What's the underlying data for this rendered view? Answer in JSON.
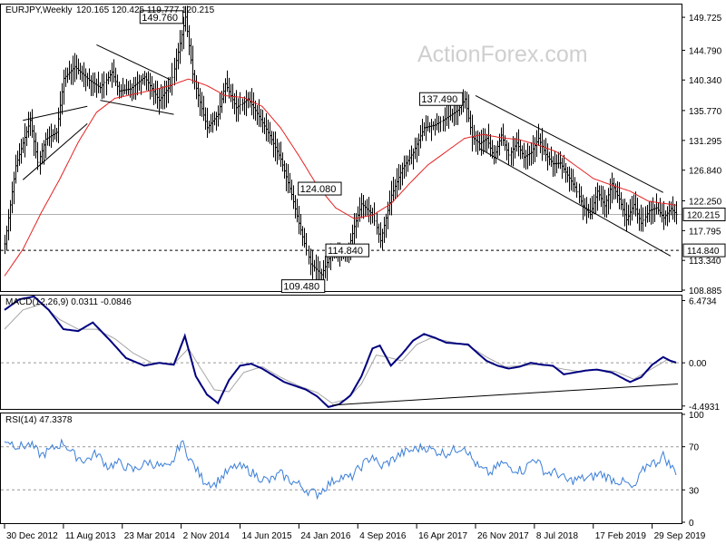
{
  "header": {
    "symbol": "EURJPY,Weekly",
    "ohlc": "120.165 120.425 119.777 120.215"
  },
  "watermark": "ActionForex.com",
  "colors": {
    "price": "#000000",
    "ma": "#e52121",
    "macd": "#00007f",
    "signal": "#a6a6a6",
    "rsi": "#3a7ed8",
    "hline": "#000000"
  },
  "chart_data": [
    {
      "type": "line",
      "name": "price-panel",
      "ylim": [
        108.885,
        151.5
      ],
      "ytick_labels": [
        "149.725",
        "144.790",
        "140.340",
        "135.770",
        "131.295",
        "126.840",
        "122.250",
        "117.795",
        "113.340",
        "108.885"
      ],
      "ytick_values": [
        149.725,
        144.79,
        140.34,
        135.77,
        131.295,
        126.84,
        122.25,
        117.795,
        113.34,
        108.885
      ],
      "xtick_labels": [
        "30 Dec 2012",
        "11 Aug 2013",
        "23 Mar 2014",
        "2 Nov 2014",
        "14 Jun 2015",
        "24 Jan 2016",
        "4 Sep 2016",
        "16 Apr 2017",
        "26 Nov 2017",
        "8 Jul 2018",
        "17 Feb 2019",
        "29 Sep 2019"
      ],
      "xtick_index": [
        0,
        32,
        64,
        96,
        128,
        160,
        192,
        224,
        256,
        288,
        320,
        352
      ],
      "weeks": 366,
      "price_anchors": [
        [
          0,
          115.8
        ],
        [
          6,
          127.5
        ],
        [
          14,
          134.3
        ],
        [
          18,
          128
        ],
        [
          22,
          131.5
        ],
        [
          28,
          132.5
        ],
        [
          32,
          140.6
        ],
        [
          38,
          142.3
        ],
        [
          46,
          140.3
        ],
        [
          52,
          139.2
        ],
        [
          58,
          141.5
        ],
        [
          62,
          138.7
        ],
        [
          68,
          139
        ],
        [
          76,
          140.8
        ],
        [
          84,
          137.3
        ],
        [
          90,
          139.5
        ],
        [
          94,
          144.5
        ],
        [
          98,
          149.76
        ],
        [
          102,
          141.2
        ],
        [
          106,
          137
        ],
        [
          110,
          133.2
        ],
        [
          116,
          135.2
        ],
        [
          120,
          139.8
        ],
        [
          126,
          136.2
        ],
        [
          132,
          137.5
        ],
        [
          138,
          134.9
        ],
        [
          144,
          132
        ],
        [
          150,
          128.5
        ],
        [
          156,
          123.2
        ],
        [
          160,
          118.9
        ],
        [
          166,
          112.8
        ],
        [
          172,
          111.2
        ],
        [
          178,
          114.8
        ],
        [
          186,
          114.2
        ],
        [
          190,
          118.4
        ],
        [
          194,
          121.8
        ],
        [
          200,
          120.2
        ],
        [
          204,
          116.3
        ],
        [
          210,
          123.1
        ],
        [
          216,
          127.1
        ],
        [
          222,
          129.5
        ],
        [
          228,
          133.2
        ],
        [
          234,
          133.6
        ],
        [
          240,
          134.7
        ],
        [
          246,
          135.8
        ],
        [
          250,
          137.49
        ],
        [
          254,
          131.8
        ],
        [
          258,
          130.8
        ],
        [
          262,
          131.6
        ],
        [
          266,
          128.7
        ],
        [
          270,
          132.1
        ],
        [
          274,
          129.1
        ],
        [
          278,
          130.9
        ],
        [
          282,
          128.8
        ],
        [
          286,
          129.5
        ],
        [
          290,
          131.6
        ],
        [
          294,
          129.2
        ],
        [
          298,
          127.8
        ],
        [
          302,
          127.9
        ],
        [
          306,
          126.1
        ],
        [
          310,
          124.3
        ],
        [
          314,
          121.5
        ],
        [
          318,
          120.2
        ],
        [
          322,
          123.7
        ],
        [
          326,
          121.5
        ],
        [
          330,
          124.8
        ],
        [
          334,
          122.5
        ],
        [
          338,
          119.4
        ],
        [
          342,
          121.7
        ],
        [
          346,
          118.9
        ],
        [
          350,
          120.8
        ],
        [
          354,
          121.2
        ],
        [
          358,
          119.7
        ],
        [
          362,
          121.1
        ],
        [
          365,
          120.215
        ]
      ],
      "ma_anchors": [
        [
          0,
          111
        ],
        [
          10,
          115
        ],
        [
          20,
          120.5
        ],
        [
          30,
          125.5
        ],
        [
          40,
          131
        ],
        [
          50,
          135.5
        ],
        [
          60,
          137.6
        ],
        [
          70,
          138.2
        ],
        [
          80,
          138.8
        ],
        [
          90,
          139.5
        ],
        [
          100,
          140.5
        ],
        [
          110,
          139.5
        ],
        [
          120,
          138
        ],
        [
          130,
          137.7
        ],
        [
          140,
          136.4
        ],
        [
          150,
          133.2
        ],
        [
          160,
          129
        ],
        [
          170,
          124.5
        ],
        [
          180,
          121.2
        ],
        [
          190,
          119.6
        ],
        [
          200,
          120.1
        ],
        [
          210,
          121.8
        ],
        [
          220,
          124.8
        ],
        [
          230,
          127.6
        ],
        [
          240,
          129.6
        ],
        [
          250,
          131.6
        ],
        [
          260,
          132.2
        ],
        [
          270,
          131.7
        ],
        [
          280,
          131.4
        ],
        [
          290,
          130.6
        ],
        [
          300,
          129.6
        ],
        [
          310,
          127.6
        ],
        [
          320,
          125.6
        ],
        [
          330,
          124.6
        ],
        [
          340,
          123.7
        ],
        [
          350,
          122.2
        ],
        [
          360,
          121.8
        ],
        [
          365,
          121.6
        ]
      ],
      "annotations": [
        {
          "text": "149.760",
          "week": 98,
          "value": 149.76
        },
        {
          "text": "137.490",
          "week": 250,
          "value": 137.49
        },
        {
          "text": "124.080",
          "week": 184,
          "value": 124.08
        },
        {
          "text": "114.840",
          "week": 199,
          "value": 114.84
        },
        {
          "text": "109.480",
          "week": 175,
          "value": 109.48
        }
      ],
      "hline_value": 114.84,
      "current_value": 120.215,
      "current_label": "120.215",
      "hline_label": "114.840",
      "trendlines": [
        [
          [
            10,
            125.4
          ],
          [
            45,
            133.8
          ]
        ],
        [
          [
            10,
            134.3
          ],
          [
            45,
            136.4
          ]
        ],
        [
          [
            50,
            145.6
          ],
          [
            90,
            140.4
          ]
        ],
        [
          [
            52,
            137.3
          ],
          [
            92,
            135.2
          ]
        ],
        [
          [
            256,
            138
          ],
          [
            358,
            123.5
          ]
        ],
        [
          [
            258,
            130.1
          ],
          [
            362,
            114
          ]
        ]
      ]
    },
    {
      "type": "line",
      "name": "macd-panel",
      "title": "MACD(12,26,9) 0.0311 -0.0846",
      "ylim": [
        -4.7,
        6.9
      ],
      "ytick_labels": [
        "6.4734",
        "0.00",
        "-4.4931"
      ],
      "ytick_values": [
        6.4734,
        0,
        -4.4931
      ],
      "current_label": "0.00",
      "macd_anchors": [
        [
          0,
          5.5
        ],
        [
          8,
          6.6
        ],
        [
          16,
          6.9
        ],
        [
          24,
          5.5
        ],
        [
          32,
          3.5
        ],
        [
          40,
          3.3
        ],
        [
          48,
          4.2
        ],
        [
          58,
          2.2
        ],
        [
          66,
          0.5
        ],
        [
          76,
          -0.3
        ],
        [
          84,
          0
        ],
        [
          92,
          -0.2
        ],
        [
          98,
          2.8
        ],
        [
          104,
          -1.4
        ],
        [
          110,
          -3.3
        ],
        [
          116,
          -4.2
        ],
        [
          122,
          -1.8
        ],
        [
          128,
          -0.3
        ],
        [
          134,
          -0.1
        ],
        [
          140,
          -0.6
        ],
        [
          146,
          -1.3
        ],
        [
          152,
          -2
        ],
        [
          158,
          -2.4
        ],
        [
          164,
          -2.8
        ],
        [
          170,
          -3.5
        ],
        [
          176,
          -4.6
        ],
        [
          182,
          -4.3
        ],
        [
          188,
          -3.4
        ],
        [
          194,
          -1.4
        ],
        [
          200,
          1.5
        ],
        [
          204,
          1.8
        ],
        [
          210,
          -0.3
        ],
        [
          216,
          0.9
        ],
        [
          222,
          2.3
        ],
        [
          228,
          3
        ],
        [
          234,
          2.6
        ],
        [
          240,
          2.1
        ],
        [
          246,
          2
        ],
        [
          252,
          1.9
        ],
        [
          256,
          1.2
        ],
        [
          262,
          0.2
        ],
        [
          268,
          -0.3
        ],
        [
          274,
          -0.6
        ],
        [
          280,
          -0.4
        ],
        [
          286,
          0
        ],
        [
          292,
          -0.2
        ],
        [
          298,
          -0.3
        ],
        [
          304,
          -1.2
        ],
        [
          310,
          -1
        ],
        [
          316,
          -0.8
        ],
        [
          322,
          -0.7
        ],
        [
          330,
          -1
        ],
        [
          336,
          -1.6
        ],
        [
          340,
          -2
        ],
        [
          346,
          -1.5
        ],
        [
          352,
          -0.2
        ],
        [
          358,
          0.6
        ],
        [
          362,
          0.2
        ],
        [
          365,
          0.03
        ]
      ],
      "signal_anchors": [
        [
          0,
          3.5
        ],
        [
          10,
          5.5
        ],
        [
          20,
          6.1
        ],
        [
          30,
          4.5
        ],
        [
          40,
          3.5
        ],
        [
          50,
          3.5
        ],
        [
          60,
          2.5
        ],
        [
          70,
          1
        ],
        [
          80,
          0
        ],
        [
          92,
          -0.1
        ],
        [
          100,
          1.5
        ],
        [
          106,
          -0.4
        ],
        [
          114,
          -2.8
        ],
        [
          122,
          -3
        ],
        [
          130,
          -1
        ],
        [
          140,
          -0.4
        ],
        [
          150,
          -1.5
        ],
        [
          160,
          -2.4
        ],
        [
          170,
          -3.1
        ],
        [
          178,
          -4.2
        ],
        [
          186,
          -3.8
        ],
        [
          194,
          -2.2
        ],
        [
          202,
          0.8
        ],
        [
          208,
          0.6
        ],
        [
          216,
          0.2
        ],
        [
          224,
          1.9
        ],
        [
          232,
          2.6
        ],
        [
          242,
          2.2
        ],
        [
          252,
          1.8
        ],
        [
          262,
          0.6
        ],
        [
          272,
          -0.4
        ],
        [
          282,
          -0.3
        ],
        [
          292,
          -0.1
        ],
        [
          302,
          -0.6
        ],
        [
          312,
          -0.9
        ],
        [
          322,
          -0.7
        ],
        [
          332,
          -0.9
        ],
        [
          342,
          -1.7
        ],
        [
          352,
          -0.6
        ],
        [
          360,
          0.3
        ],
        [
          365,
          -0.08
        ]
      ],
      "trendline": [
        [
          178,
          -4.4
        ],
        [
          366,
          -2.2
        ]
      ]
    },
    {
      "type": "line",
      "name": "rsi-panel",
      "title": "RSI(14) 47.3378",
      "ylim": [
        0,
        100
      ],
      "ytick_labels": [
        "100",
        "70",
        "30",
        "0"
      ],
      "ytick_values": [
        100,
        70,
        30,
        0
      ],
      "rsi_anchors": [
        [
          0,
          77
        ],
        [
          8,
          70
        ],
        [
          14,
          72
        ],
        [
          20,
          62
        ],
        [
          26,
          68
        ],
        [
          32,
          74
        ],
        [
          38,
          62
        ],
        [
          44,
          57
        ],
        [
          50,
          64
        ],
        [
          56,
          52
        ],
        [
          62,
          55
        ],
        [
          70,
          48
        ],
        [
          78,
          56
        ],
        [
          86,
          51
        ],
        [
          90,
          50
        ],
        [
          96,
          75
        ],
        [
          102,
          55
        ],
        [
          108,
          39
        ],
        [
          114,
          35
        ],
        [
          120,
          45
        ],
        [
          126,
          52
        ],
        [
          132,
          49
        ],
        [
          138,
          42
        ],
        [
          144,
          38
        ],
        [
          150,
          45
        ],
        [
          156,
          38
        ],
        [
          160,
          35
        ],
        [
          164,
          30
        ],
        [
          170,
          26
        ],
        [
          176,
          35
        ],
        [
          182,
          42
        ],
        [
          188,
          41
        ],
        [
          194,
          52
        ],
        [
          200,
          62
        ],
        [
          204,
          51
        ],
        [
          210,
          57
        ],
        [
          216,
          64
        ],
        [
          222,
          67
        ],
        [
          228,
          70
        ],
        [
          234,
          66
        ],
        [
          240,
          64
        ],
        [
          246,
          68
        ],
        [
          250,
          71
        ],
        [
          254,
          59
        ],
        [
          258,
          50
        ],
        [
          264,
          45
        ],
        [
          270,
          55
        ],
        [
          276,
          50
        ],
        [
          282,
          48
        ],
        [
          288,
          60
        ],
        [
          294,
          46
        ],
        [
          300,
          46
        ],
        [
          306,
          38
        ],
        [
          312,
          40
        ],
        [
          318,
          41
        ],
        [
          324,
          45
        ],
        [
          330,
          40
        ],
        [
          334,
          38
        ],
        [
          338,
          36
        ],
        [
          342,
          30
        ],
        [
          346,
          45
        ],
        [
          350,
          55
        ],
        [
          354,
          55
        ],
        [
          358,
          62
        ],
        [
          362,
          52
        ],
        [
          365,
          47
        ]
      ]
    }
  ]
}
